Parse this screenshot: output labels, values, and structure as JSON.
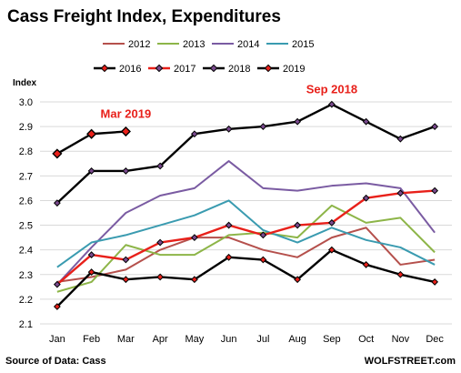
{
  "chart_data": {
    "type": "line",
    "title": "Cass Freight Index, Expenditures",
    "ylabel": "Index",
    "xlabel": "",
    "categories": [
      "Jan",
      "Feb",
      "Mar",
      "Apr",
      "May",
      "Jun",
      "Jul",
      "Aug",
      "Sep",
      "Oct",
      "Nov",
      "Dec"
    ],
    "ylim": [
      2.1,
      3.0
    ],
    "yticks": [
      "2.1",
      "2.2",
      "2.3",
      "2.4",
      "2.5",
      "2.6",
      "2.7",
      "2.8",
      "2.9",
      "3.0"
    ],
    "grid": "horizontal",
    "legend_position": "top",
    "series": [
      {
        "name": "2012",
        "color": "#b5504c",
        "marker": "none",
        "values": [
          2.27,
          2.29,
          2.32,
          2.4,
          2.45,
          2.45,
          2.4,
          2.37,
          2.45,
          2.49,
          2.34,
          2.36
        ]
      },
      {
        "name": "2013",
        "color": "#8db548",
        "marker": "none",
        "values": [
          2.23,
          2.27,
          2.42,
          2.38,
          2.38,
          2.46,
          2.47,
          2.45,
          2.58,
          2.51,
          2.53,
          2.39
        ]
      },
      {
        "name": "2014",
        "color": "#7a5ba2",
        "marker": "none",
        "values": [
          2.26,
          2.41,
          2.55,
          2.62,
          2.65,
          2.76,
          2.65,
          2.64,
          2.66,
          2.67,
          2.65,
          2.47
        ]
      },
      {
        "name": "2015",
        "color": "#3a9bb0",
        "marker": "none",
        "values": [
          2.33,
          2.43,
          2.46,
          2.5,
          2.54,
          2.6,
          2.48,
          2.43,
          2.49,
          2.44,
          2.41,
          2.34
        ]
      },
      {
        "name": "2016",
        "color": "#000000",
        "marker": "diamond-red",
        "values": [
          2.17,
          2.31,
          2.28,
          2.29,
          2.28,
          2.37,
          2.36,
          2.28,
          2.4,
          2.34,
          2.3,
          2.27
        ]
      },
      {
        "name": "2017",
        "color": "#e8201a",
        "marker": "diamond-purple",
        "values": [
          2.26,
          2.38,
          2.36,
          2.43,
          2.45,
          2.5,
          2.46,
          2.5,
          2.51,
          2.61,
          2.63,
          2.64
        ]
      },
      {
        "name": "2018",
        "color": "#000000",
        "marker": "diamond-purple",
        "values": [
          2.59,
          2.72,
          2.72,
          2.74,
          2.87,
          2.89,
          2.9,
          2.92,
          2.99,
          2.92,
          2.85,
          2.9
        ]
      },
      {
        "name": "2019",
        "color": "#000000",
        "marker": "diamond-red",
        "values": [
          2.79,
          2.87,
          2.88,
          null,
          null,
          null,
          null,
          null,
          null,
          null,
          null,
          null
        ]
      }
    ],
    "annotations": [
      {
        "text": "Mar 2019",
        "x": "Mar",
        "y": 2.92
      },
      {
        "text": "Sep 2018",
        "x": "Sep",
        "y": 3.02
      }
    ]
  },
  "footer": {
    "source": "Source of Data: Cass",
    "brand": "WOLFSTREET.com"
  }
}
